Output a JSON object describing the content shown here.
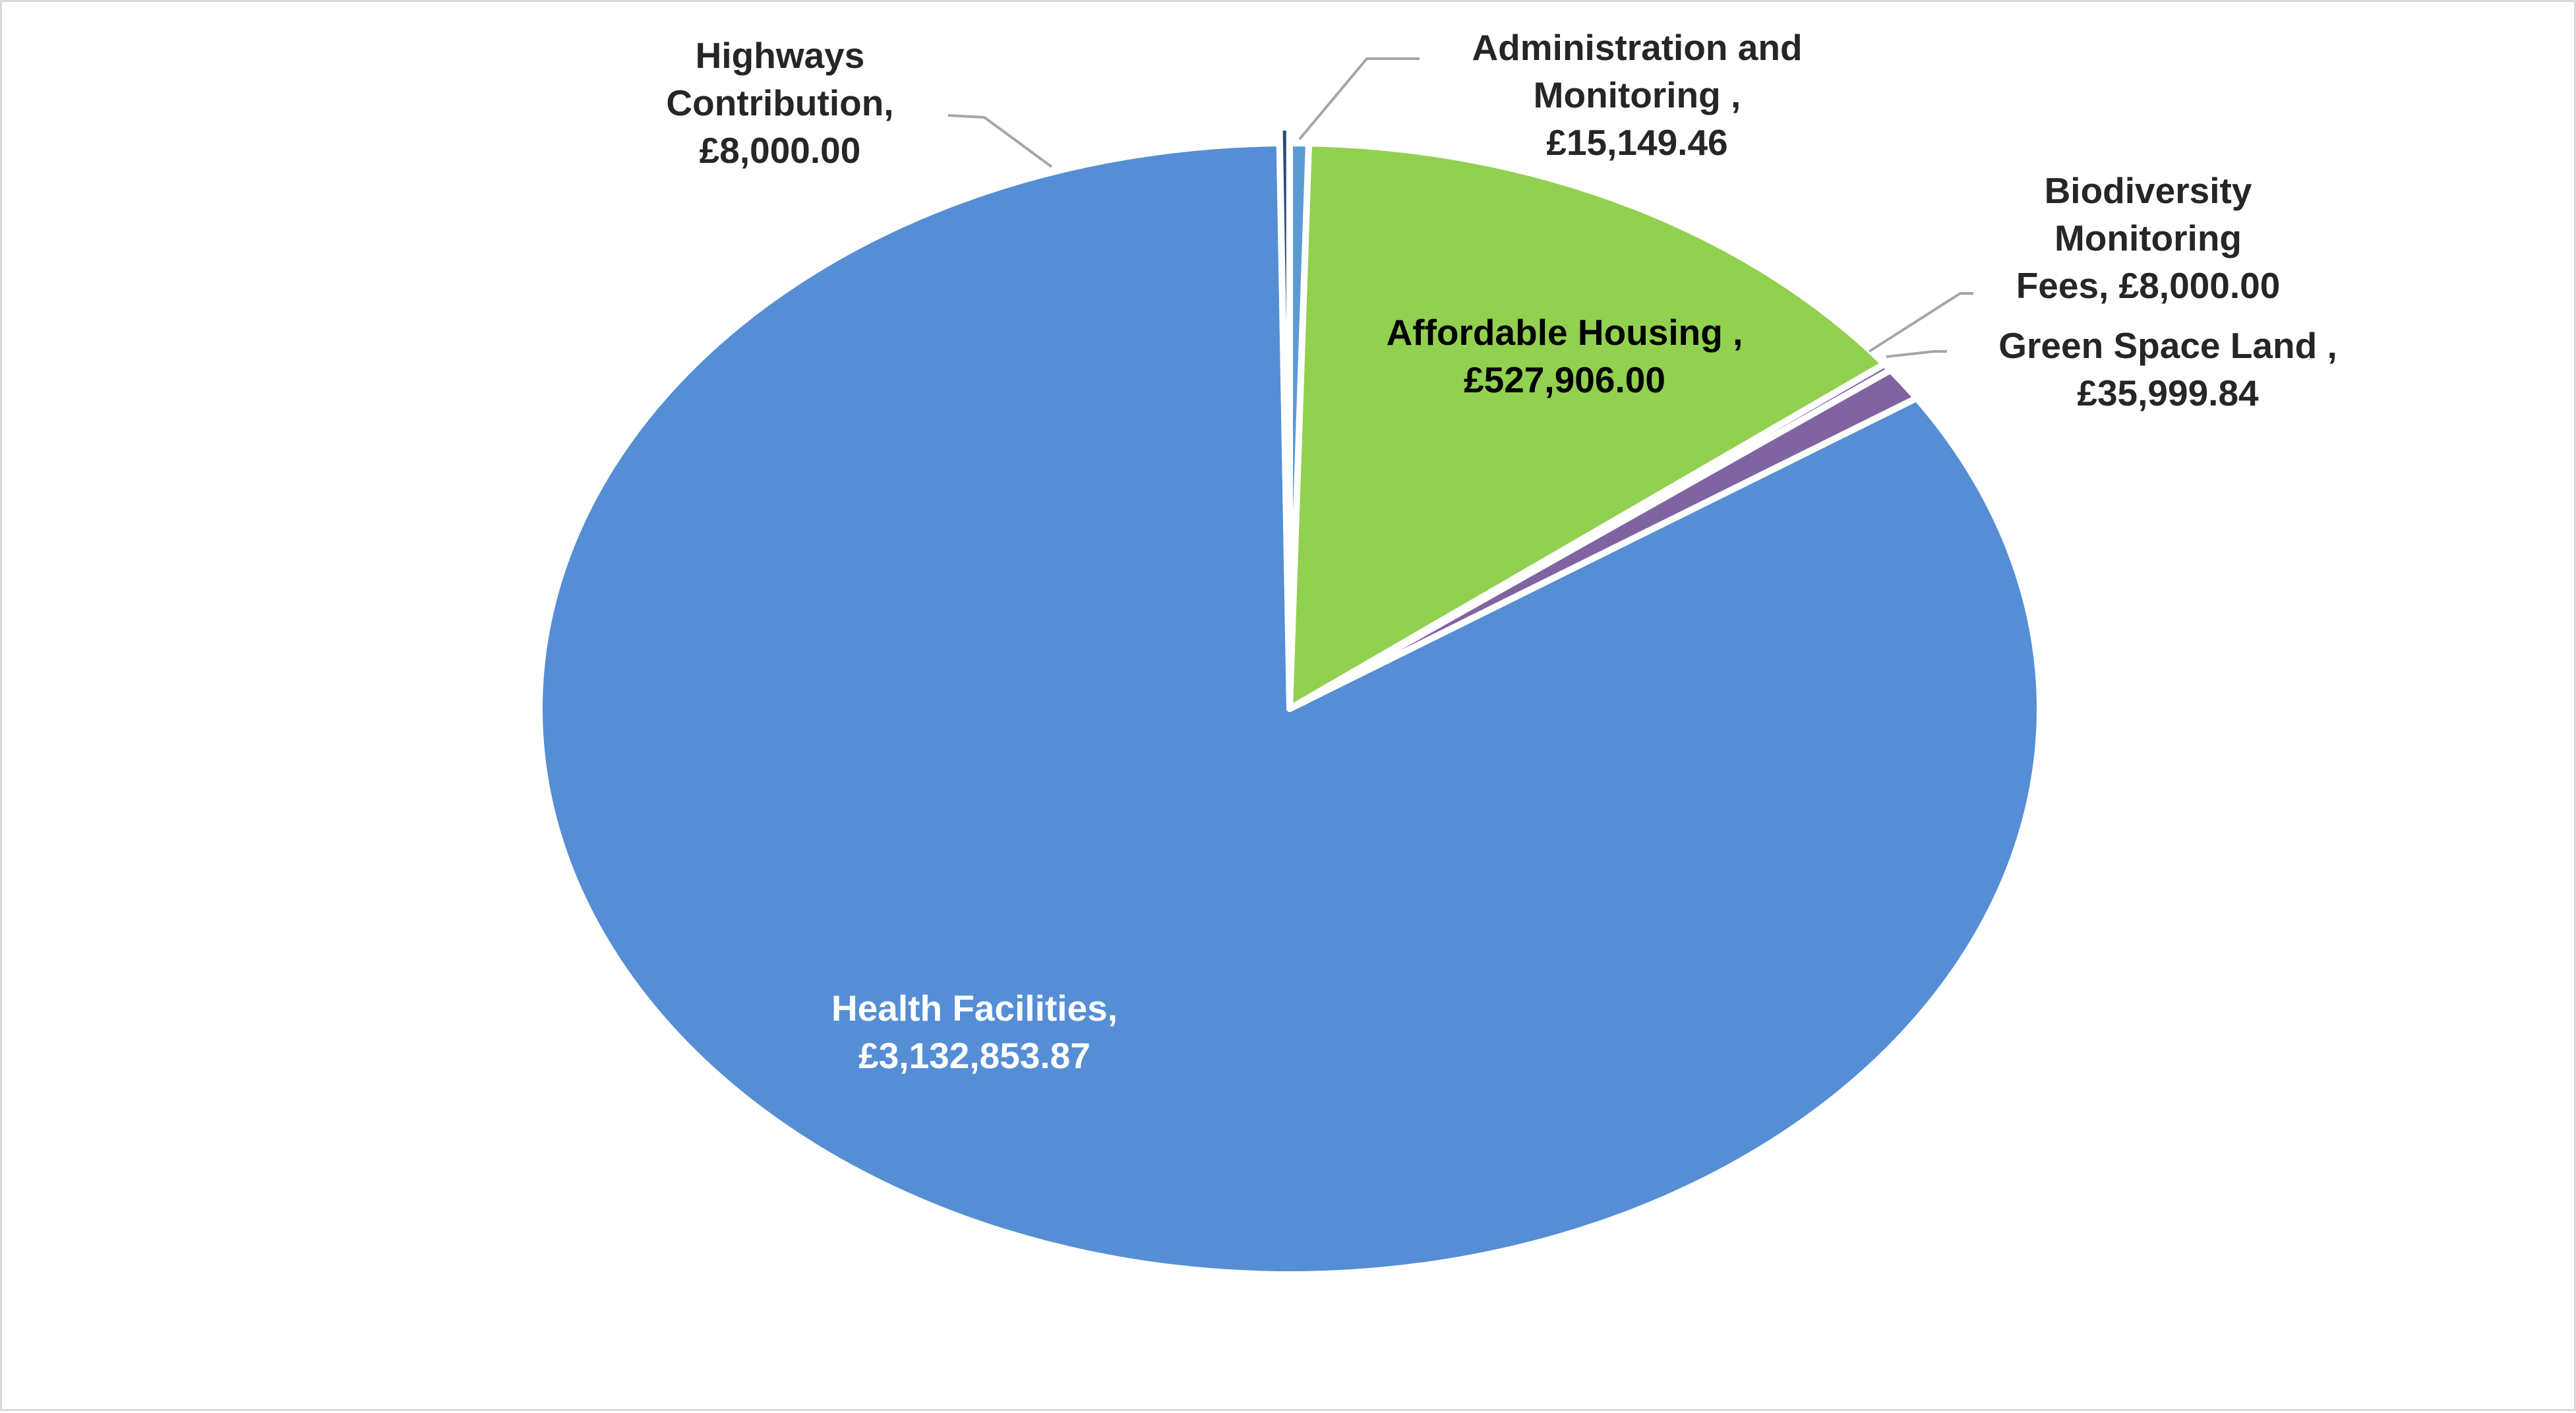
{
  "chart_data": {
    "type": "pie",
    "title": "",
    "slices": [
      {
        "name": "Administration and Monitoring",
        "value": 15149.46,
        "color": "#5b9bd5",
        "label_lines": [
          "Administration and",
          "Monitoring ,",
          "£15,149.46"
        ],
        "label_color": "#262626"
      },
      {
        "name": "Affordable Housing",
        "value": 527906.0,
        "color": "#92d050",
        "label_lines": [
          "Affordable Housing ,",
          "£527,906.00"
        ],
        "label_color": "#000000"
      },
      {
        "name": "Biodiversity Monitoring Fees",
        "value": 8000.0,
        "color": "#7f60a8",
        "label_lines": [
          "Biodiversity",
          "Monitoring",
          "Fees, £8,000.00"
        ],
        "label_color": "#262626"
      },
      {
        "name": "Green Space Land",
        "value": 35999.84,
        "color": "#8064a2",
        "label_lines": [
          "Green Space Land  ,",
          "£35,999.84"
        ],
        "label_color": "#262626"
      },
      {
        "name": "Health Facilities",
        "value": 3132853.87,
        "color": "#558ed5",
        "label_lines": [
          "Health Facilities,",
          "£3,132,853.87"
        ],
        "label_color": "#ffffff"
      },
      {
        "name": "Highways Contribution",
        "value": 8000.0,
        "color": "#2e4d76",
        "label_lines": [
          "Highways",
          "Contribution,",
          "£8,000.00"
        ],
        "label_color": "#262626"
      }
    ],
    "legend": "none",
    "data_labels": "category name and value"
  }
}
